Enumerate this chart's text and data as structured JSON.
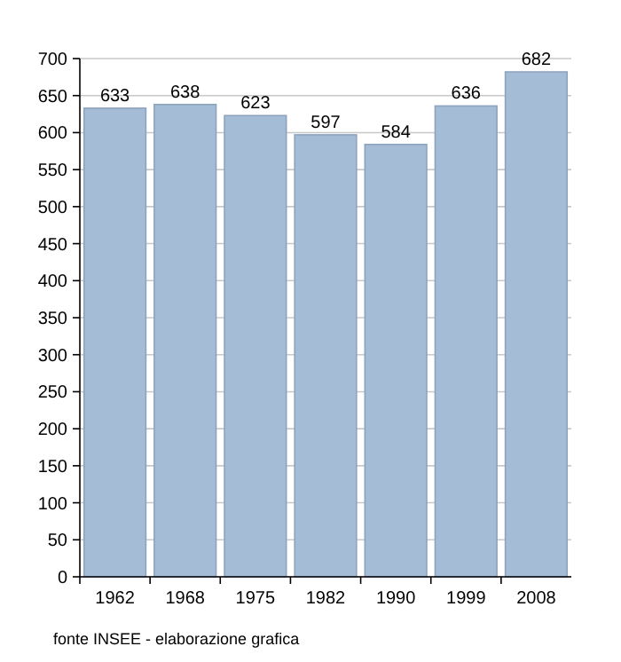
{
  "chart_data": {
    "type": "bar",
    "categories": [
      "1962",
      "1968",
      "1975",
      "1982",
      "1990",
      "1999",
      "2008"
    ],
    "values": [
      633,
      638,
      623,
      597,
      584,
      636,
      682
    ],
    "color": "#a5bcd6",
    "ylim": [
      0,
      700
    ],
    "yticks": [
      0,
      50,
      100,
      150,
      200,
      250,
      300,
      350,
      400,
      450,
      500,
      550,
      600,
      650,
      700
    ],
    "grid": "y",
    "data_labels": true,
    "annotations": [
      "fonte INSEE - elaborazione grafica"
    ]
  }
}
